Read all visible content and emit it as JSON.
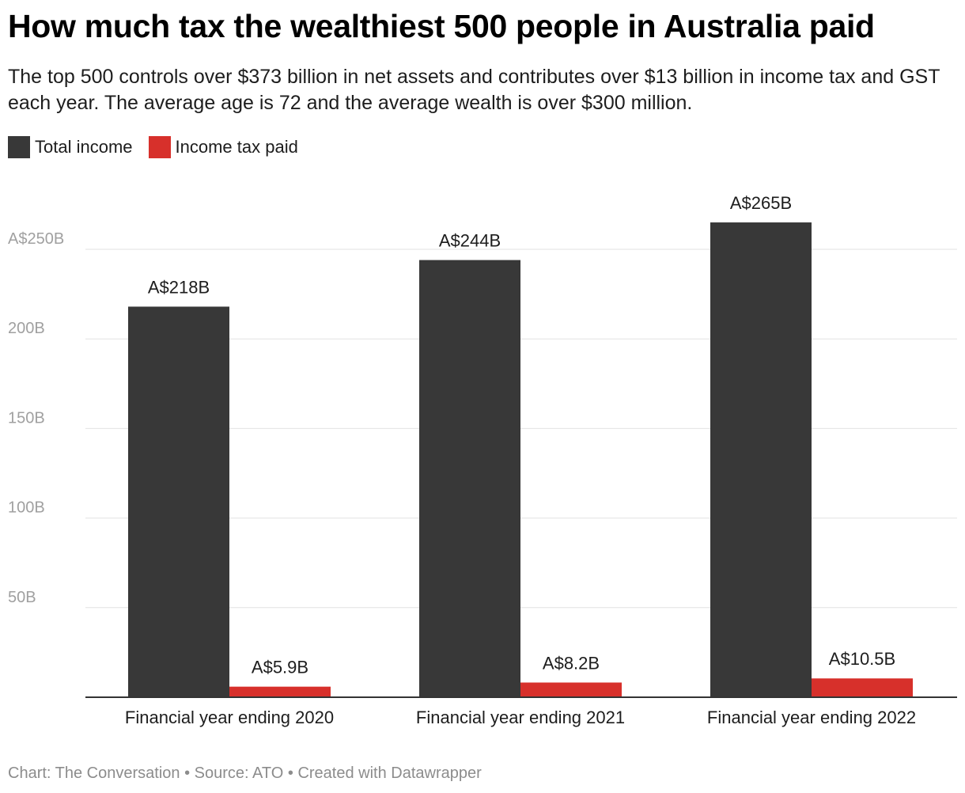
{
  "title": "How much tax the wealthiest 500 people in Australia paid",
  "subtitle": "The top 500 controls over $373 billion in net assets and contributes over $13 billion in income tax and GST each year. The average age is 72 and the average wealth is over $300 million.",
  "legend": [
    {
      "label": "Total income",
      "color": "#383838"
    },
    {
      "label": "Income tax paid",
      "color": "#d7302b"
    }
  ],
  "footer": {
    "chart": "Chart: The Conversation",
    "source": "Source: ATO",
    "created": "Created with Datawrapper",
    "separator": " • "
  },
  "chart_data": {
    "type": "bar",
    "categories": [
      "Financial year ending 2020",
      "Financial year ending 2021",
      "Financial year ending 2022"
    ],
    "series": [
      {
        "name": "Total income",
        "color": "#383838",
        "values": [
          218,
          244,
          265
        ],
        "labels": [
          "A$218B",
          "A$244B",
          "A$265B"
        ]
      },
      {
        "name": "Income tax paid",
        "color": "#d7302b",
        "values": [
          5.9,
          8.2,
          10.5
        ],
        "labels": [
          "A$5.9B",
          "A$8.2B",
          "A$10.5B"
        ]
      }
    ],
    "unit": "billion A$",
    "ylim": [
      0,
      250
    ],
    "yticks": [
      {
        "value": 50,
        "label": "50B"
      },
      {
        "value": 100,
        "label": "100B"
      },
      {
        "value": 150,
        "label": "150B"
      },
      {
        "value": 200,
        "label": "200B"
      },
      {
        "value": 250,
        "label": "A$250B"
      }
    ],
    "grid": true,
    "legend_position": "top-left"
  }
}
